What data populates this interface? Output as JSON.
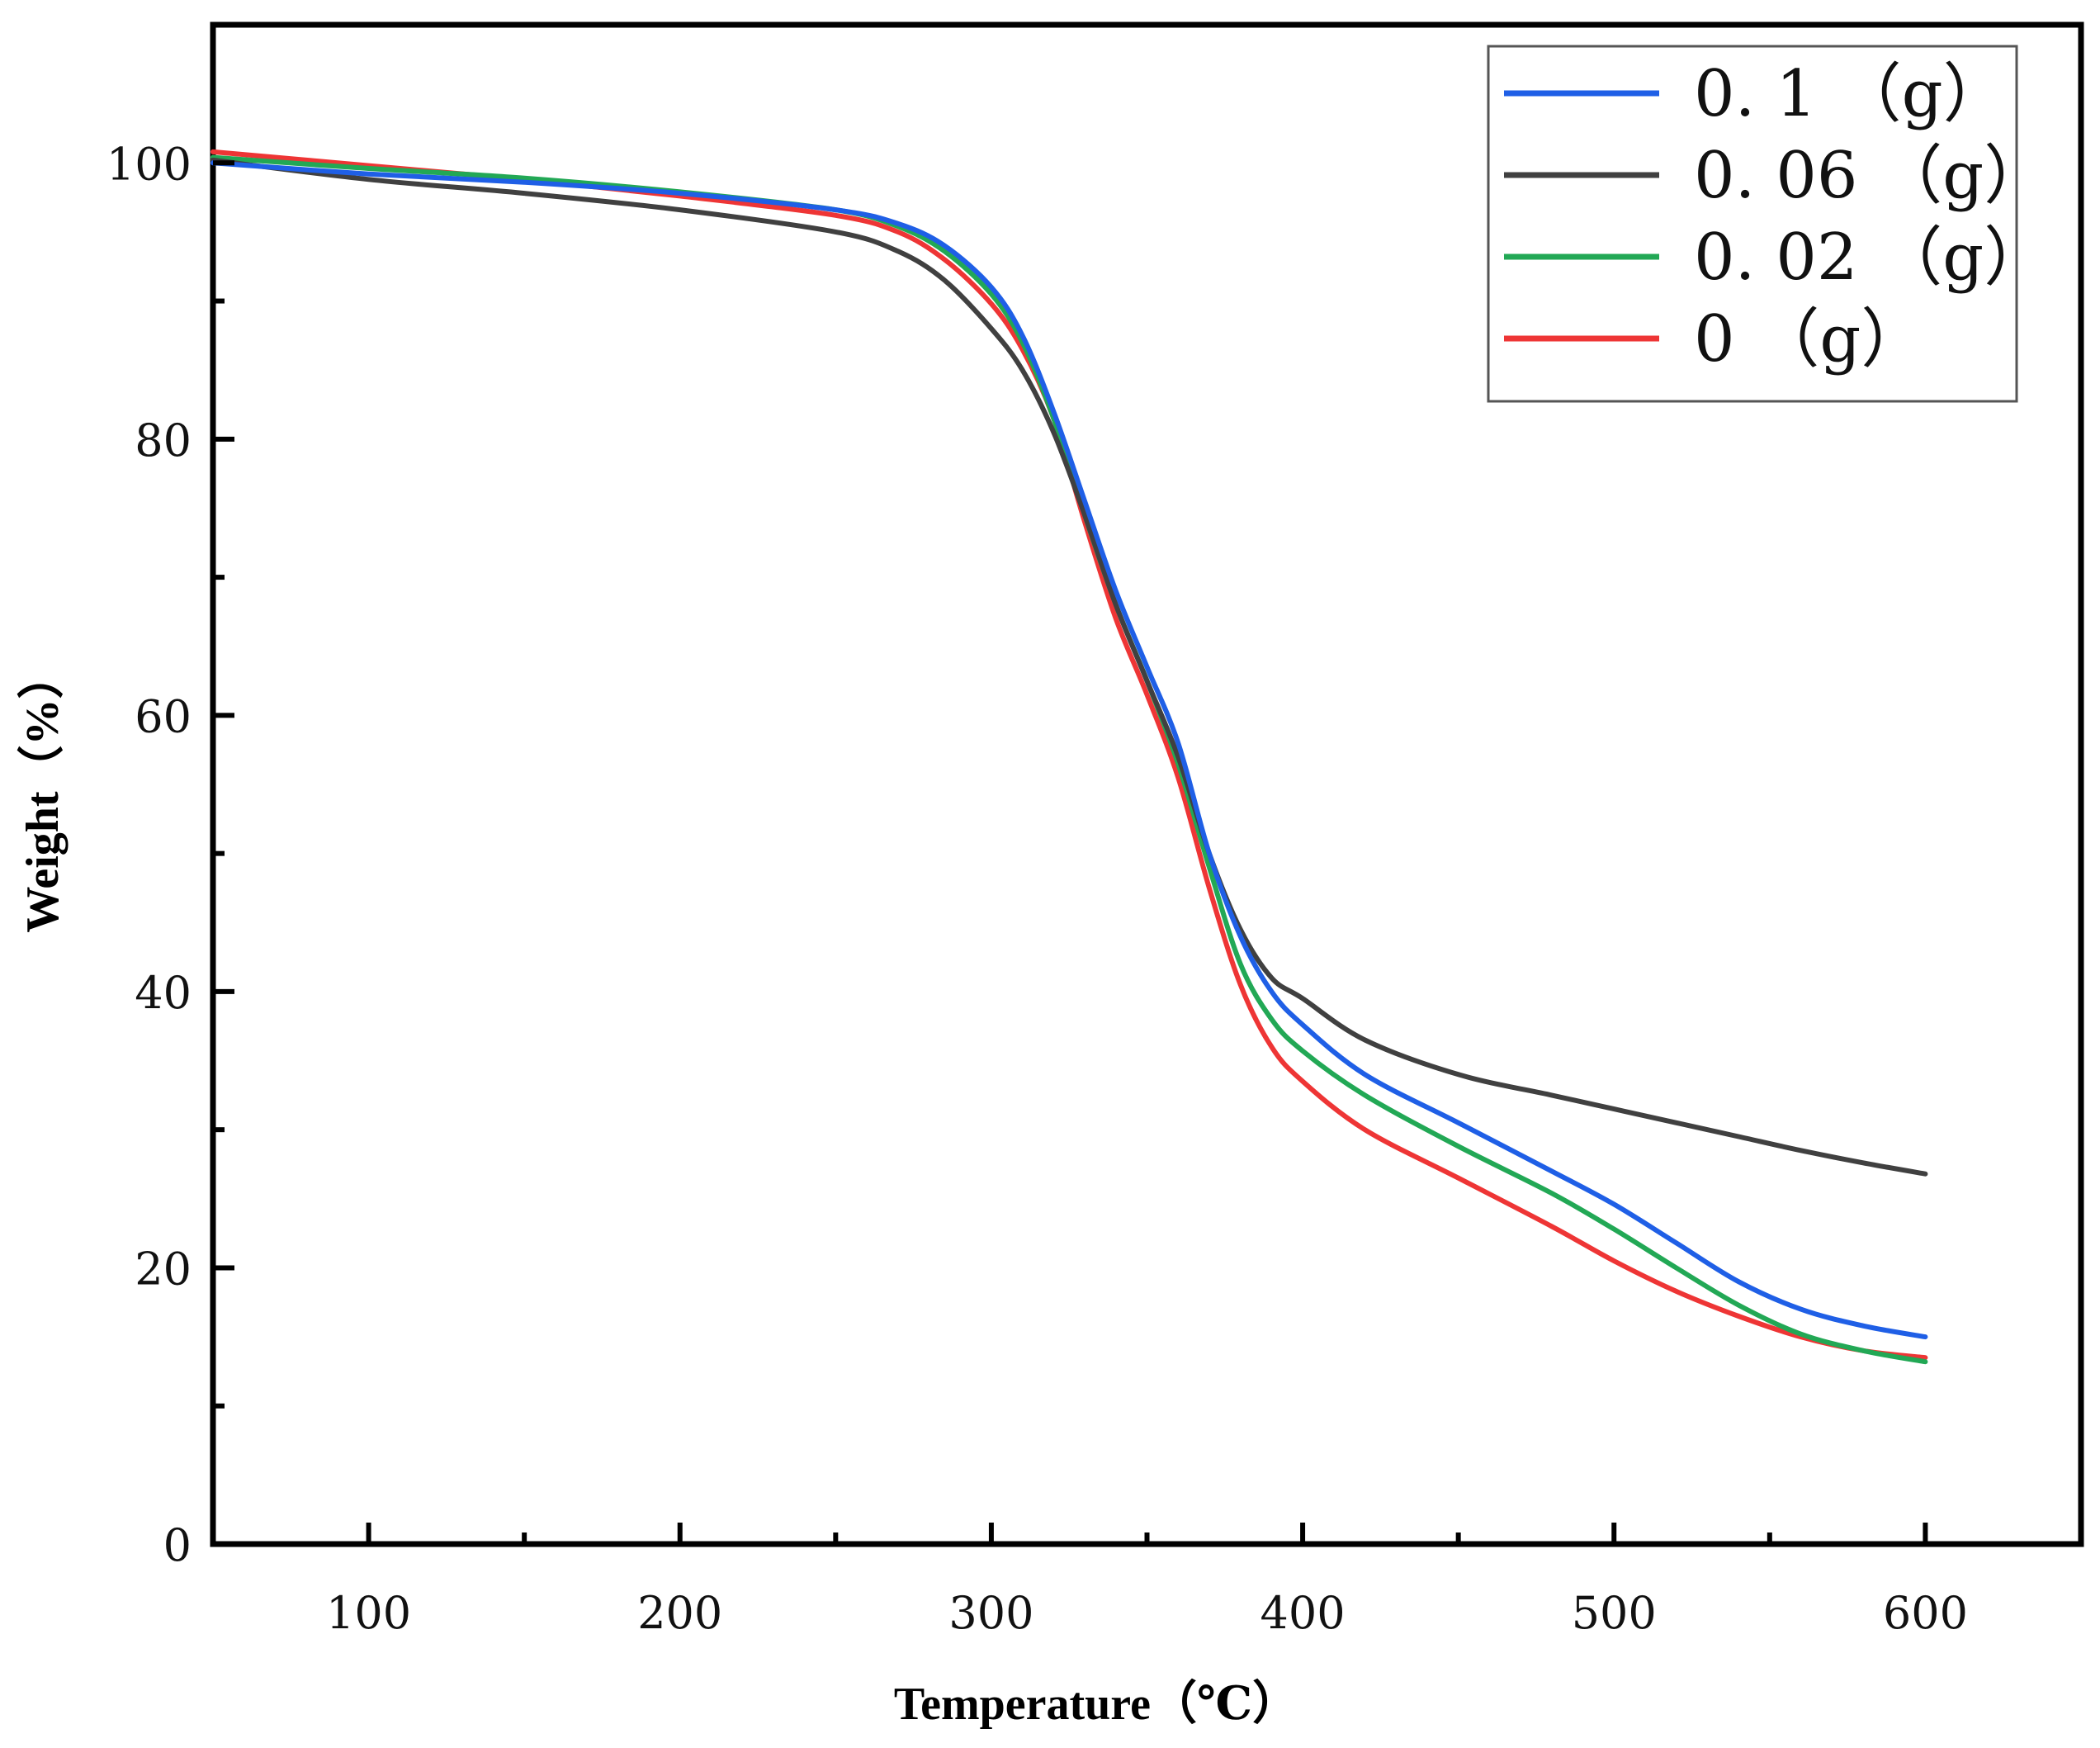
{
  "chart_data": {
    "type": "line",
    "title": "",
    "xlabel": "Temperature（℃）",
    "ylabel": "Weight（%）",
    "xlim": [
      50,
      650
    ],
    "ylim": [
      0,
      110
    ],
    "xticks": [
      100,
      200,
      300,
      400,
      500,
      600
    ],
    "yticks": [
      0,
      20,
      40,
      60,
      80,
      100
    ],
    "x_tick_labels": [
      "100",
      "200",
      "300",
      "400",
      "500",
      "600"
    ],
    "y_tick_labels": [
      "0",
      "20",
      "40",
      "60",
      "80",
      "100"
    ],
    "legend_position": "top-right",
    "grid": false,
    "series": [
      {
        "name": "0.1（g）",
        "legend_label": "0. 1 （g）",
        "color": "#1f5fe6",
        "points": [
          [
            50,
            100.0
          ],
          [
            100,
            99.2
          ],
          [
            150,
            98.6
          ],
          [
            200,
            97.8
          ],
          [
            250,
            96.6
          ],
          [
            270,
            95.6
          ],
          [
            285,
            94.0
          ],
          [
            300,
            91.0
          ],
          [
            310,
            87.5
          ],
          [
            320,
            82.0
          ],
          [
            330,
            75.5
          ],
          [
            340,
            69.0
          ],
          [
            350,
            63.5
          ],
          [
            360,
            58.0
          ],
          [
            370,
            50.0
          ],
          [
            380,
            44.0
          ],
          [
            390,
            40.0
          ],
          [
            400,
            37.6
          ],
          [
            420,
            34.0
          ],
          [
            450,
            30.5
          ],
          [
            480,
            27.0
          ],
          [
            500,
            24.6
          ],
          [
            520,
            21.8
          ],
          [
            540,
            19.0
          ],
          [
            560,
            17.0
          ],
          [
            580,
            15.8
          ],
          [
            600,
            15.0
          ]
        ]
      },
      {
        "name": "0.06（g）",
        "legend_label": "0. 06 （g）",
        "color": "#404040",
        "points": [
          [
            50,
            100.2
          ],
          [
            100,
            98.8
          ],
          [
            150,
            97.8
          ],
          [
            200,
            96.6
          ],
          [
            250,
            95.0
          ],
          [
            270,
            93.6
          ],
          [
            285,
            91.5
          ],
          [
            300,
            88.0
          ],
          [
            310,
            85.0
          ],
          [
            320,
            80.5
          ],
          [
            330,
            74.5
          ],
          [
            340,
            68.0
          ],
          [
            350,
            62.5
          ],
          [
            360,
            57.0
          ],
          [
            370,
            50.0
          ],
          [
            380,
            44.5
          ],
          [
            390,
            41.0
          ],
          [
            400,
            39.5
          ],
          [
            420,
            36.5
          ],
          [
            450,
            34.0
          ],
          [
            480,
            32.5
          ],
          [
            500,
            31.5
          ],
          [
            520,
            30.5
          ],
          [
            540,
            29.5
          ],
          [
            560,
            28.5
          ],
          [
            580,
            27.6
          ],
          [
            600,
            26.8
          ]
        ]
      },
      {
        "name": "0.02（g）",
        "legend_label": "0. 02 （g）",
        "color": "#22a855",
        "points": [
          [
            50,
            100.4
          ],
          [
            100,
            99.6
          ],
          [
            150,
            98.9
          ],
          [
            200,
            97.9
          ],
          [
            250,
            96.6
          ],
          [
            270,
            95.4
          ],
          [
            285,
            93.6
          ],
          [
            300,
            90.5
          ],
          [
            310,
            87.0
          ],
          [
            320,
            81.5
          ],
          [
            330,
            74.5
          ],
          [
            340,
            68.0
          ],
          [
            350,
            62.5
          ],
          [
            360,
            56.5
          ],
          [
            370,
            49.0
          ],
          [
            380,
            42.0
          ],
          [
            390,
            38.0
          ],
          [
            400,
            35.7
          ],
          [
            420,
            32.5
          ],
          [
            450,
            28.8
          ],
          [
            480,
            25.4
          ],
          [
            500,
            22.8
          ],
          [
            520,
            20.0
          ],
          [
            540,
            17.3
          ],
          [
            560,
            15.2
          ],
          [
            580,
            14.0
          ],
          [
            600,
            13.2
          ]
        ]
      },
      {
        "name": "0（g）",
        "legend_label": "0 （g）",
        "color": "#ee3535",
        "points": [
          [
            50,
            100.8
          ],
          [
            100,
            99.8
          ],
          [
            150,
            98.8
          ],
          [
            200,
            97.6
          ],
          [
            250,
            96.2
          ],
          [
            270,
            95.0
          ],
          [
            285,
            93.0
          ],
          [
            300,
            89.8
          ],
          [
            310,
            86.5
          ],
          [
            320,
            81.5
          ],
          [
            330,
            74.0
          ],
          [
            340,
            67.0
          ],
          [
            350,
            61.5
          ],
          [
            360,
            55.5
          ],
          [
            370,
            47.5
          ],
          [
            380,
            40.5
          ],
          [
            390,
            36.0
          ],
          [
            400,
            33.5
          ],
          [
            420,
            30.0
          ],
          [
            450,
            26.5
          ],
          [
            480,
            23.0
          ],
          [
            500,
            20.5
          ],
          [
            520,
            18.3
          ],
          [
            540,
            16.5
          ],
          [
            560,
            15.0
          ],
          [
            580,
            14.0
          ],
          [
            600,
            13.5
          ]
        ]
      }
    ]
  }
}
